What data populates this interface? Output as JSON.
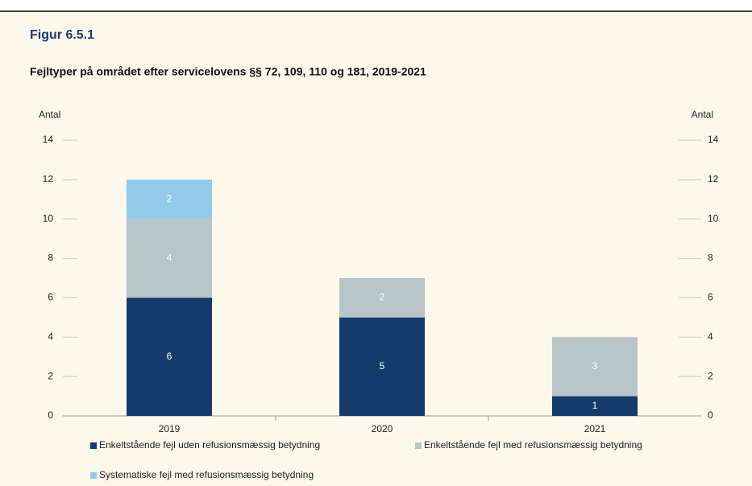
{
  "chart_data": {
    "type": "stacked-bar",
    "label": "Figur 6.5.1",
    "title": "Fejltyper på området efter servicelovens §§ 72, 109, 110 og 181, 2019-2021",
    "y_axis_label": "Antal",
    "y2_axis_label": "Antal",
    "categories": [
      "2019",
      "2020",
      "2021"
    ],
    "series": [
      {
        "name": "Enkeltstående fejl uden refusionsmæssig betydning",
        "color": "#163a6c",
        "values": [
          6,
          5,
          1
        ]
      },
      {
        "name": "Enkeltstående fejl med refusionsmæssig betydning",
        "color": "#b8c5c9",
        "values": [
          4,
          2,
          3
        ]
      },
      {
        "name": "Systematiske fejl med refusionsmæssig betydning",
        "color": "#93cbe9",
        "values": [
          2,
          null,
          null
        ]
      }
    ],
    "ylim": [
      0,
      14
    ],
    "yticks": [
      0,
      2,
      4,
      6,
      8,
      10,
      12,
      14
    ],
    "y2lim": [
      0,
      14
    ],
    "y2ticks": [
      0,
      2,
      4,
      6,
      8,
      10,
      12,
      14
    ],
    "legend": "bottom"
  }
}
